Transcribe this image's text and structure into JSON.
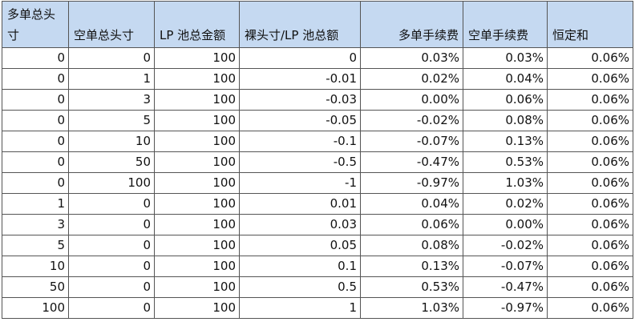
{
  "table": {
    "headers": [
      "多单总头寸",
      "空单总头寸",
      "LP 池总金额",
      "裸头寸/LP 池总额",
      "多单手续费",
      "空单手续费",
      "恒定和"
    ],
    "rows": [
      [
        "0",
        "0",
        "100",
        "0",
        "0.03%",
        "0.03%",
        "0.06%"
      ],
      [
        "0",
        "1",
        "100",
        "-0.01",
        "0.02%",
        "0.04%",
        "0.06%"
      ],
      [
        "0",
        "3",
        "100",
        "-0.03",
        "0.00%",
        "0.06%",
        "0.06%"
      ],
      [
        "0",
        "5",
        "100",
        "-0.05",
        "-0.02%",
        "0.08%",
        "0.06%"
      ],
      [
        "0",
        "10",
        "100",
        "-0.1",
        "-0.07%",
        "0.13%",
        "0.06%"
      ],
      [
        "0",
        "50",
        "100",
        "-0.5",
        "-0.47%",
        "0.53%",
        "0.06%"
      ],
      [
        "0",
        "100",
        "100",
        "-1",
        "-0.97%",
        "1.03%",
        "0.06%"
      ],
      [
        "1",
        "0",
        "100",
        "0.01",
        "0.04%",
        "0.02%",
        "0.06%"
      ],
      [
        "3",
        "0",
        "100",
        "0.03",
        "0.06%",
        "0.00%",
        "0.06%"
      ],
      [
        "5",
        "0",
        "100",
        "0.05",
        "0.08%",
        "-0.02%",
        "0.06%"
      ],
      [
        "10",
        "0",
        "100",
        "0.1",
        "0.13%",
        "-0.07%",
        "0.06%"
      ],
      [
        "50",
        "0",
        "100",
        "0.5",
        "0.53%",
        "-0.47%",
        "0.06%"
      ],
      [
        "100",
        "0",
        "100",
        "1",
        "1.03%",
        "-0.97%",
        "0.06%"
      ]
    ]
  },
  "colors": {
    "header_background": "#c5d9f1",
    "grid_line": "#555555",
    "text": "#111111"
  }
}
